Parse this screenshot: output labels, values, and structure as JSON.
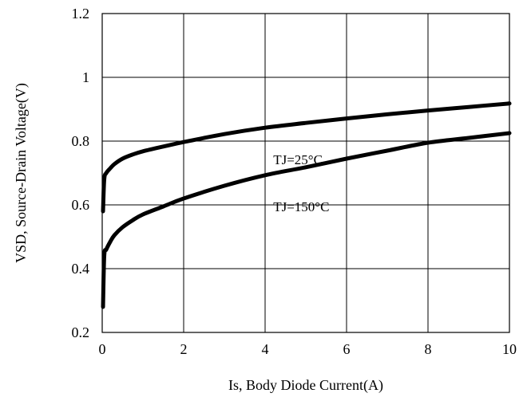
{
  "chart_data": {
    "type": "line",
    "title": "",
    "xlabel": "Is, Body Diode Current(A)",
    "ylabel": "VSD, Source-Drain Voltage(V)",
    "xlim": [
      0,
      10
    ],
    "ylim": [
      0.2,
      1.2
    ],
    "xticks": [
      "0",
      "2",
      "4",
      "6",
      "8",
      "10"
    ],
    "yticks": [
      "0.2",
      "0.4",
      "0.6",
      "0.8",
      "1",
      "1.2"
    ],
    "grid": true,
    "series": [
      {
        "name": "TJ=25°C",
        "x": [
          0.02,
          0.05,
          0.1,
          0.2,
          0.3,
          0.5,
          0.75,
          1,
          1.5,
          2,
          3,
          4,
          5,
          6,
          7,
          8,
          9,
          10
        ],
        "y": [
          0.58,
          0.68,
          0.7,
          0.715,
          0.728,
          0.745,
          0.758,
          0.768,
          0.783,
          0.797,
          0.822,
          0.842,
          0.857,
          0.871,
          0.884,
          0.896,
          0.907,
          0.918
        ]
      },
      {
        "name": "TJ=150°C",
        "x": [
          0.02,
          0.05,
          0.1,
          0.2,
          0.3,
          0.5,
          0.75,
          1,
          1.5,
          2,
          3,
          4,
          5,
          6,
          7,
          8,
          9,
          10
        ],
        "y": [
          0.28,
          0.44,
          0.46,
          0.485,
          0.505,
          0.53,
          0.552,
          0.57,
          0.595,
          0.62,
          0.66,
          0.693,
          0.718,
          0.745,
          0.77,
          0.795,
          0.81,
          0.825
        ]
      }
    ],
    "annotations": [
      {
        "text": "TJ=25°C",
        "series": 0
      },
      {
        "text": "TJ=150°C",
        "series": 1
      }
    ]
  }
}
